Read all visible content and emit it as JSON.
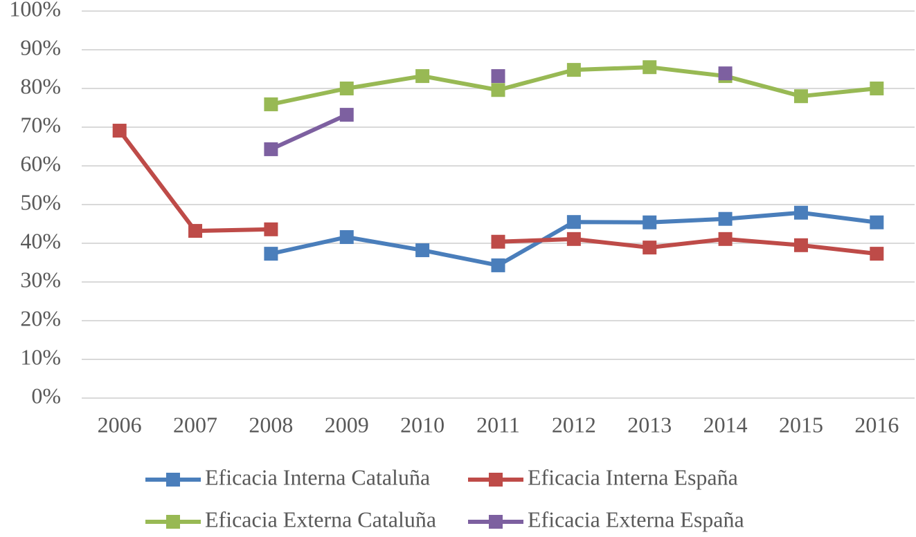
{
  "chart_data": {
    "type": "line",
    "categories": [
      "2006",
      "2007",
      "2008",
      "2009",
      "2010",
      "2011",
      "2012",
      "2013",
      "2014",
      "2015",
      "2016"
    ],
    "series": [
      {
        "name": "Eficacia Interna Cataluña",
        "color": "#4a7ebb",
        "values": [
          null,
          null,
          37.3,
          41.6,
          38.2,
          34.3,
          45.5,
          45.4,
          46.3,
          47.9,
          45.4
        ]
      },
      {
        "name": "Eficacia Interna España",
        "color": "#be4b48",
        "values": [
          69.1,
          43.2,
          43.6,
          null,
          null,
          40.4,
          41.1,
          38.9,
          41.1,
          39.5,
          37.3
        ]
      },
      {
        "name": "Eficacia Externa Cataluña",
        "color": "#98b954",
        "values": [
          null,
          null,
          75.9,
          80,
          83.2,
          79.6,
          84.8,
          85.5,
          83.2,
          78,
          80
        ]
      },
      {
        "name": "Eficacia Externa España",
        "color": "#7d60a0",
        "values": [
          null,
          null,
          64.3,
          73.2,
          null,
          83.2,
          null,
          null,
          83.9,
          null,
          null
        ]
      }
    ],
    "ylim": [
      0,
      100
    ],
    "yticks": [
      {
        "value": 0,
        "label": "0%"
      },
      {
        "value": 10,
        "label": "10%"
      },
      {
        "value": 20,
        "label": "20%"
      },
      {
        "value": 30,
        "label": "30%"
      },
      {
        "value": 40,
        "label": "40%"
      },
      {
        "value": 50,
        "label": "50%"
      },
      {
        "value": 60,
        "label": "60%"
      },
      {
        "value": 70,
        "label": "70%"
      },
      {
        "value": 80,
        "label": "80%"
      },
      {
        "value": 90,
        "label": "90%"
      },
      {
        "value": 100,
        "label": "100%"
      }
    ],
    "grid": true,
    "legend": "bottom"
  }
}
